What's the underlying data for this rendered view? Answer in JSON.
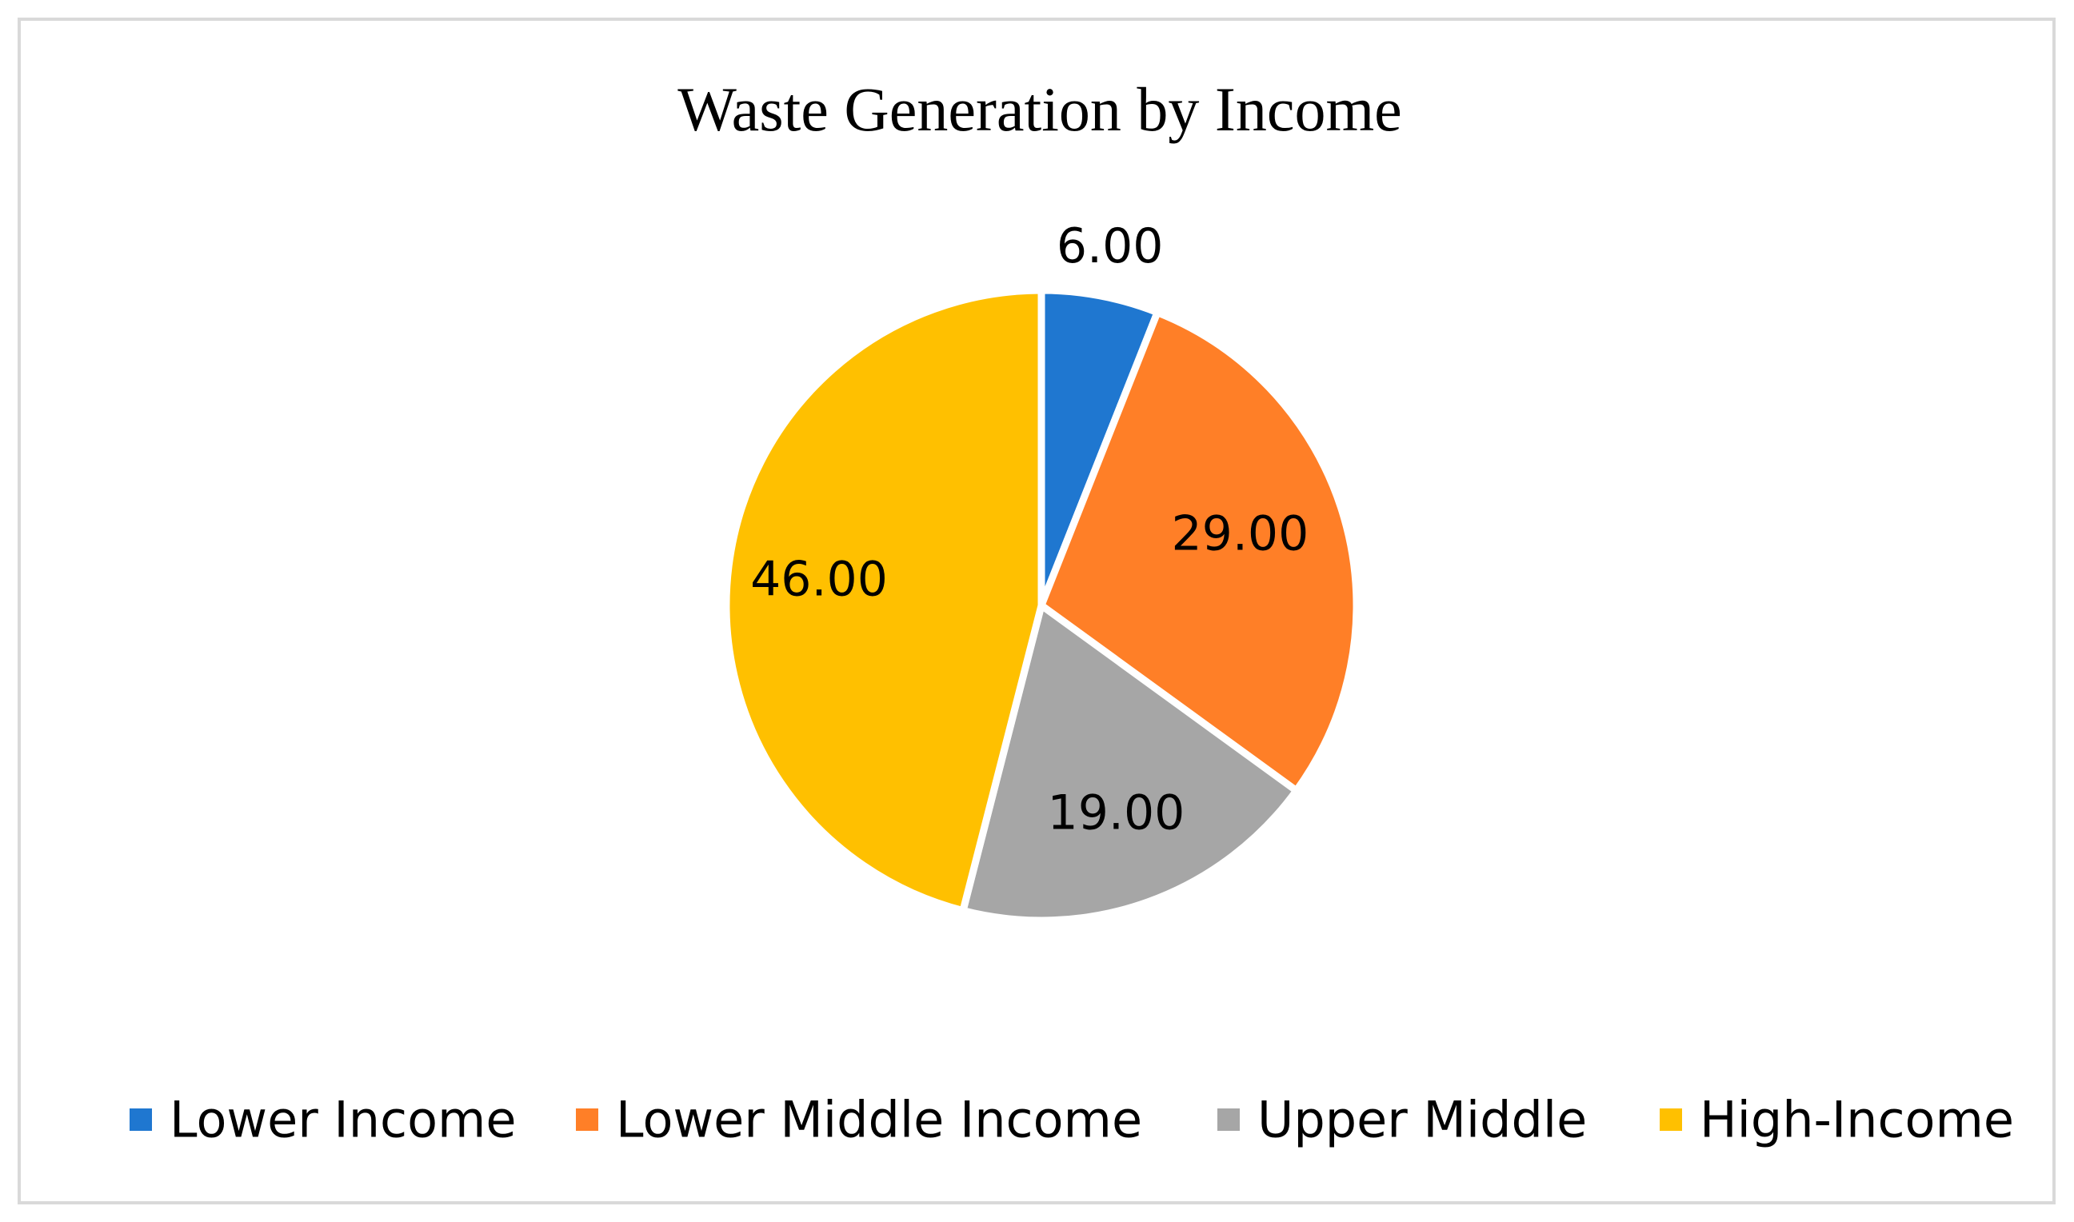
{
  "chart_data": {
    "type": "pie",
    "title": "Waste Generation by Income",
    "categories": [
      "Lower Income",
      "Lower Middle Income",
      "Upper Middle",
      "High-Income"
    ],
    "values": [
      6.0,
      29.0,
      19.0,
      46.0
    ],
    "data_labels": [
      "6.00",
      "29.00",
      "19.00",
      "46.00"
    ],
    "colors": [
      "#1f77d0",
      "#ff7f27",
      "#a6a6a6",
      "#ffc000"
    ],
    "slice_border_color": "#ffffff",
    "legend_position": "bottom",
    "start_angle_deg": 0,
    "direction": "clockwise"
  }
}
